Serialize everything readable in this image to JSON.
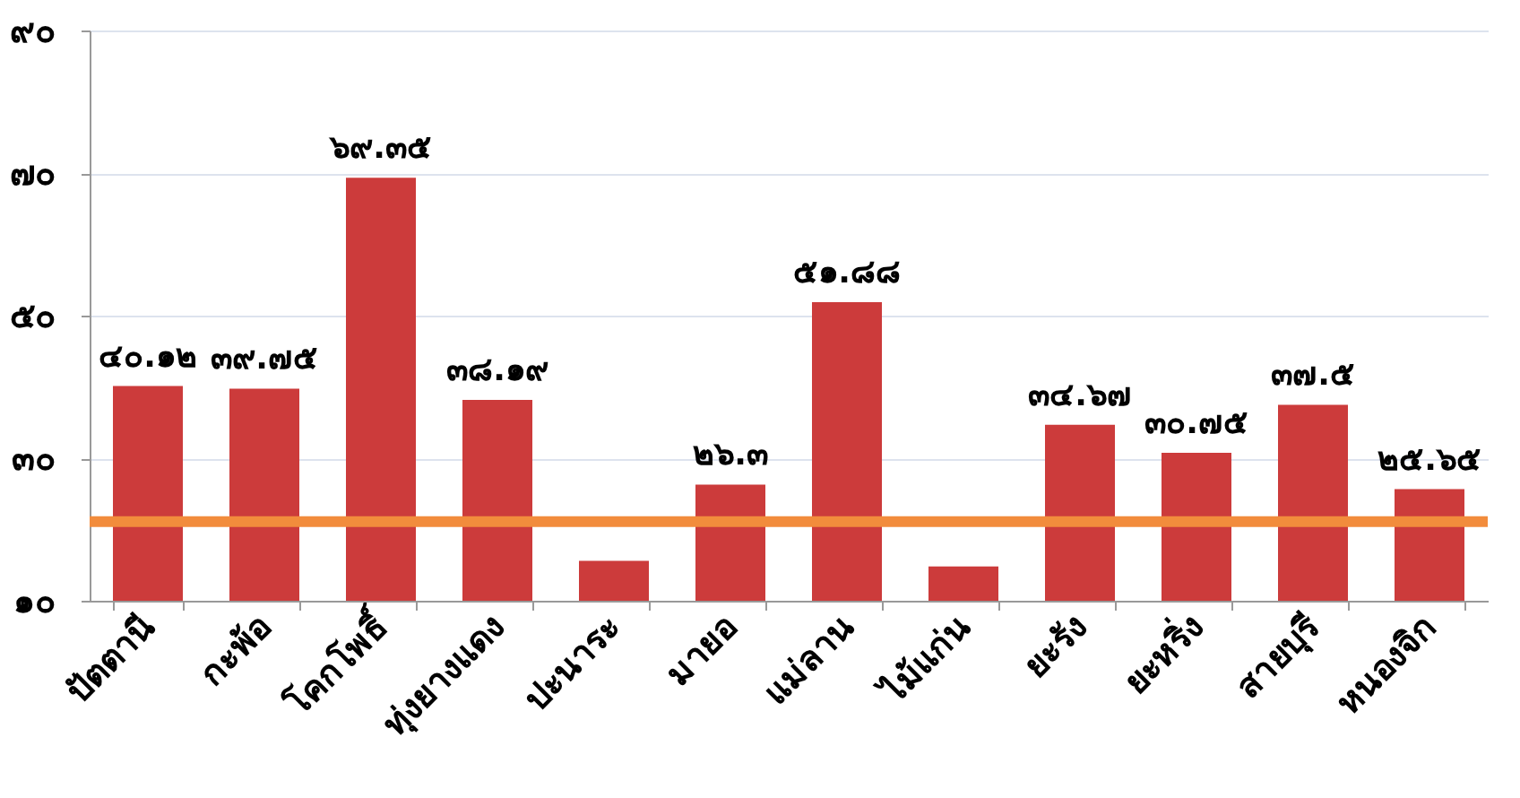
{
  "chart_data": {
    "type": "bar",
    "categories": [
      "ปัตตานี",
      "กะพ้อ",
      "โคกโพธิ์",
      "ทุ่งยางแดง",
      "ปะนาระ",
      "มายอ",
      "แม่ลาน",
      "ไม้แก่น",
      "ยะรัง",
      "ยะหริ่ง",
      "สายบุรี",
      "หนองจิก"
    ],
    "values": [
      40.12,
      39.75,
      69.35,
      38.19,
      15.6,
      26.3,
      51.88,
      14.8,
      34.67,
      30.75,
      37.5,
      25.65
    ],
    "value_labels": [
      "๔๐.๑๒",
      "๓๙.๗๕",
      "๖๙.๓๕",
      "๓๘.๑๙",
      null,
      "๒๖.๓",
      "๕๑.๘๘",
      null,
      "๓๔.๖๗",
      "๓๐.๗๕",
      "๓๗.๕",
      "๒๕.๖๕"
    ],
    "color": "#cc3b3b",
    "ylim": [
      10,
      90
    ],
    "yticks": [
      {
        "value": 10,
        "label": "๑๐"
      },
      {
        "value": 30,
        "label": "๓๐"
      },
      {
        "value": 50,
        "label": "๕๐"
      },
      {
        "value": 70,
        "label": "๗๐"
      },
      {
        "value": 90,
        "label": "๙๐"
      }
    ],
    "grid": "y",
    "ref_lines": [
      {
        "axis": "y",
        "value": 21.1,
        "color": "#f28c3c"
      }
    ]
  }
}
